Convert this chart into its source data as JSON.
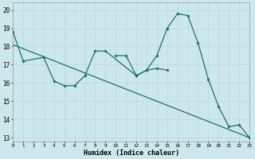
{
  "title": "",
  "xlabel": "Humidex (Indice chaleur)",
  "background_color": "#cde8ec",
  "grid_color": "#b8d8dc",
  "line_color": "#1a7068",
  "x": [
    0,
    1,
    2,
    3,
    4,
    5,
    6,
    7,
    8,
    9,
    10,
    11,
    12,
    13,
    14,
    15,
    16,
    17,
    18,
    19,
    20,
    21,
    22,
    23
  ],
  "line1_x": [
    0,
    1,
    3,
    4,
    5,
    6,
    7,
    8,
    9,
    12,
    13,
    14,
    15
  ],
  "line1_y": [
    18.8,
    17.2,
    17.4,
    16.1,
    15.85,
    15.85,
    16.4,
    17.75,
    17.75,
    16.4,
    16.7,
    16.8,
    16.7
  ],
  "line2_x": [
    10,
    11,
    12,
    13,
    14,
    15,
    16,
    17,
    18,
    19,
    20,
    21,
    22,
    23
  ],
  "line2_y": [
    17.5,
    17.5,
    16.4,
    16.7,
    17.5,
    19.0,
    19.8,
    19.7,
    18.2,
    16.2,
    14.7,
    13.6,
    13.7,
    13.0
  ],
  "line3_x": [
    0,
    23
  ],
  "line3_y": [
    18.1,
    13.0
  ],
  "ylim": [
    12.8,
    20.4
  ],
  "xlim": [
    0,
    23
  ],
  "yticks": [
    13,
    14,
    15,
    16,
    17,
    18,
    19,
    20
  ],
  "xticks": [
    0,
    1,
    2,
    3,
    4,
    5,
    6,
    7,
    8,
    9,
    10,
    11,
    12,
    13,
    14,
    15,
    16,
    17,
    18,
    19,
    20,
    21,
    22,
    23
  ]
}
